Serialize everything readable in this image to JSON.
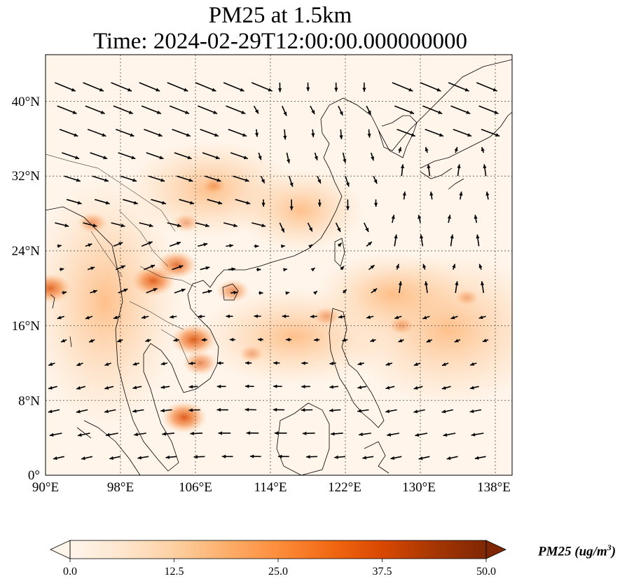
{
  "title": {
    "line1": "PM25 at 1.5km",
    "line2": "Time: 2024-02-29T12:00:00.000000000"
  },
  "map": {
    "lon_range": [
      90,
      139
    ],
    "lat_range": [
      0,
      45
    ],
    "gridlines": true,
    "x_ticks": [
      "90°E",
      "98°E",
      "106°E",
      "114°E",
      "122°E",
      "130°E",
      "138°E"
    ],
    "y_ticks": [
      "0°",
      "8°N",
      "16°N",
      "24°N",
      "32°N",
      "40°N"
    ],
    "field": "PM25",
    "overlay": "wind vectors",
    "pollution_hotspots": [
      {
        "lon": 90.5,
        "lat": 20,
        "value": 40
      },
      {
        "lon": 101.5,
        "lat": 20.8,
        "value": 42
      },
      {
        "lon": 104,
        "lat": 22.5,
        "value": 38
      },
      {
        "lon": 105.8,
        "lat": 14.5,
        "value": 44
      },
      {
        "lon": 106.5,
        "lat": 12,
        "value": 32
      },
      {
        "lon": 104.8,
        "lat": 6.2,
        "value": 44
      },
      {
        "lon": 110,
        "lat": 19.7,
        "value": 30
      },
      {
        "lon": 105,
        "lat": 27,
        "value": 22
      },
      {
        "lon": 108,
        "lat": 31,
        "value": 18
      },
      {
        "lon": 95,
        "lat": 27,
        "value": 26
      },
      {
        "lon": 120,
        "lat": 17,
        "value": 22
      },
      {
        "lon": 128,
        "lat": 16,
        "value": 20
      },
      {
        "lon": 135,
        "lat": 19,
        "value": 18
      },
      {
        "lon": 112,
        "lat": 13,
        "value": 20
      }
    ]
  },
  "colorbar": {
    "title_text": "PM25 (ug/m",
    "title_sup": "3",
    "title_close": ")",
    "min": 0.0,
    "max": 50.0,
    "ticks": [
      "0.0",
      "12.5",
      "25.0",
      "37.5",
      "50.0"
    ],
    "colormap": [
      "#fff5eb",
      "#fee6ce",
      "#fdd0a2",
      "#fdae6b",
      "#fd8d3c",
      "#f16913",
      "#d94801",
      "#a63603",
      "#7f2704"
    ],
    "extend": "both"
  },
  "colors": {
    "background_low": "#fff5eb",
    "land_outline": "#000000",
    "gridline": "#7a6a55",
    "arrow": "#000000"
  }
}
